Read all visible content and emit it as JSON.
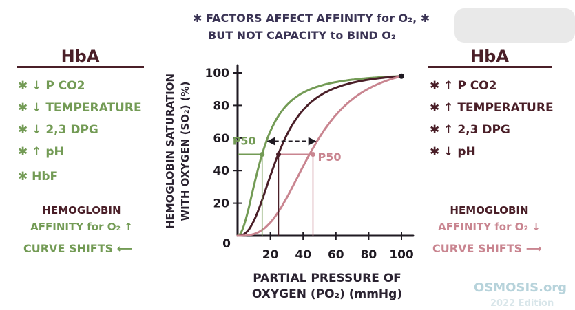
{
  "header": {
    "line1": "✱ FACTORS AFFECT AFFINITY for O₂, ✱",
    "line2": "BUT NOT CAPACITY to BIND O₂"
  },
  "left_panel": {
    "title": "HbA",
    "factors": [
      "✱ ↓ P CO2",
      "✱ ↓ TEMPERATURE",
      "✱ ↓ 2,3 DPG",
      "✱ ↑ pH",
      "✱ HbF"
    ],
    "affinity_line1": "HEMOGLOBIN",
    "affinity_line2": "AFFINITY for O₂ ↑",
    "curve_shift": "CURVE SHIFTS ⟵"
  },
  "right_panel": {
    "title": "HbA",
    "factors": [
      "✱ ↑ P CO2",
      "✱ ↑ TEMPERATURE",
      "✱ ↑ 2,3 DPG",
      "✱ ↓ pH"
    ],
    "affinity_line1": "HEMOGLOBIN",
    "affinity_line2": "AFFINITY for O₂ ↓",
    "curve_shift": "CURVE SHIFTS ⟶"
  },
  "logo": {
    "text": "OSMOSIS.org",
    "sub": "2022 Edition"
  },
  "colors": {
    "left_green": "#739b55",
    "normal_curve": "#4a1f28",
    "right_pink": "#c98590",
    "axis": "#1f1a22"
  },
  "chart_data": {
    "type": "line",
    "title": "",
    "xlabel_line1": "PARTIAL PRESSURE OF",
    "xlabel_line2": "OXYGEN (PO₂) (mmHg)",
    "ylabel_line1": "HEMOGLOBIN SATURATION",
    "ylabel_line2": "WITH OXYGEN (SO₂) (%)",
    "xlim": [
      0,
      100
    ],
    "ylim": [
      0,
      100
    ],
    "x_ticks": [
      20,
      40,
      60,
      80,
      100
    ],
    "y_ticks": [
      20,
      40,
      60,
      80,
      100
    ],
    "origin_label": "0",
    "series": [
      {
        "name": "left-shift",
        "color": "#739b55",
        "p50": 15,
        "n": 2.0
      },
      {
        "name": "normal",
        "color": "#4a1f28",
        "p50": 25,
        "n": 2.5
      },
      {
        "name": "right-shift",
        "color": "#c98590",
        "p50": 46,
        "n": 3.0
      }
    ],
    "p50_saturation": 50,
    "annotations": [
      {
        "label": "P50",
        "attached_series": "left-shift"
      },
      {
        "label": "P50",
        "attached_series": "right-shift"
      }
    ],
    "end_point": [
      100,
      98
    ]
  }
}
